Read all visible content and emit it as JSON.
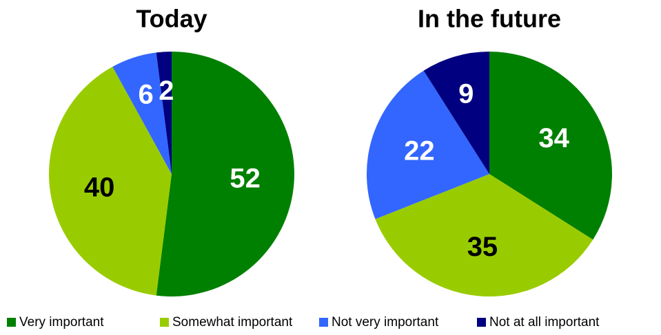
{
  "chart_data": [
    {
      "type": "pie",
      "title": "Today",
      "categories": [
        "Very important",
        "Somewhat important",
        "Not very important",
        "Not at all important"
      ],
      "values": [
        52,
        40,
        6,
        2
      ],
      "colors": [
        "#008000",
        "#99cc00",
        "#3366ff",
        "#000080"
      ],
      "label_colors": [
        "#ffffff",
        "#000000",
        "#ffffff",
        "#ffffff"
      ]
    },
    {
      "type": "pie",
      "title": "In the future",
      "categories": [
        "Very important",
        "Somewhat important",
        "Not very important",
        "Not at all important"
      ],
      "values": [
        34,
        35,
        22,
        9
      ],
      "colors": [
        "#008000",
        "#99cc00",
        "#3366ff",
        "#000080"
      ],
      "label_colors": [
        "#ffffff",
        "#000000",
        "#ffffff",
        "#ffffff"
      ]
    }
  ]
}
